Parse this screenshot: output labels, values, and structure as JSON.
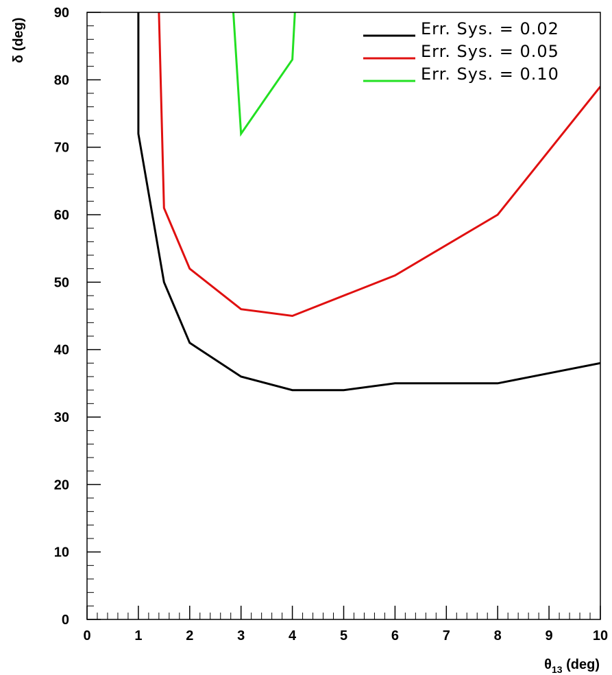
{
  "chart_data": {
    "type": "line",
    "title": "",
    "xlabel": {
      "main": "θ",
      "sub": "13",
      "unit": " (deg)"
    },
    "ylabel": "δ (deg)",
    "xlim": [
      0,
      10
    ],
    "ylim": [
      0,
      90
    ],
    "x_ticks": [
      0,
      1,
      2,
      3,
      4,
      5,
      6,
      7,
      8,
      9,
      10
    ],
    "y_ticks": [
      0,
      10,
      20,
      30,
      40,
      50,
      60,
      70,
      80,
      90
    ],
    "grid": false,
    "legend_position": "top-right",
    "series": [
      {
        "name": "Err. Sys. = 0.02",
        "color": "#000000",
        "x": [
          1.0,
          1.0,
          1.5,
          2,
          3,
          4,
          5,
          6,
          8,
          10
        ],
        "y": [
          90,
          72,
          50,
          41,
          36,
          34,
          34,
          35,
          35,
          38
        ]
      },
      {
        "name": "Err. Sys. = 0.05",
        "color": "#e01010",
        "x": [
          1.4,
          1.5,
          2,
          3,
          4,
          6,
          8,
          10
        ],
        "y": [
          90,
          61,
          52,
          46,
          45,
          51,
          60,
          79
        ]
      },
      {
        "name": "Err. Sys. = 0.10",
        "color": "#22e022",
        "x": [
          2.85,
          3,
          4,
          4.05
        ],
        "y": [
          90,
          72,
          83,
          90
        ]
      }
    ]
  }
}
